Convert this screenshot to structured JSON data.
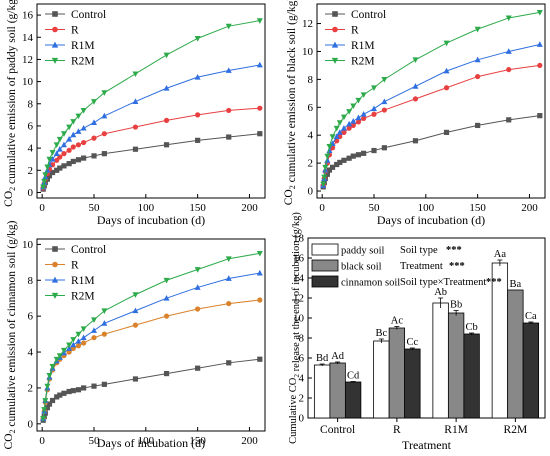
{
  "chart_data": [
    {
      "type": "line",
      "panel": "paddy",
      "xlabel": "Days of incubation (d)",
      "ylabel": "CO₂ cumulative emission of paddy soil (g/kg)",
      "xlim": [
        -5,
        215
      ],
      "ylim": [
        -0.5,
        17
      ],
      "xticks": [
        0,
        50,
        100,
        150,
        200
      ],
      "yticks": [
        0,
        2,
        4,
        6,
        8,
        10,
        12,
        14,
        16
      ],
      "legend_position": "top-left",
      "x": [
        1,
        2,
        3,
        5,
        7,
        10,
        14,
        17,
        21,
        26,
        30,
        35,
        40,
        50,
        60,
        90,
        120,
        150,
        180,
        210
      ],
      "series": [
        {
          "name": "Control",
          "color": "#555555",
          "marker": "square",
          "values": [
            0.3,
            0.6,
            0.9,
            1.2,
            1.5,
            1.8,
            2.0,
            2.2,
            2.4,
            2.6,
            2.8,
            2.95,
            3.1,
            3.3,
            3.5,
            3.9,
            4.3,
            4.7,
            5.0,
            5.3
          ]
        },
        {
          "name": "R",
          "color": "#e84040",
          "marker": "circle",
          "values": [
            0.4,
            0.8,
            1.2,
            1.7,
            2.1,
            2.5,
            2.9,
            3.2,
            3.5,
            3.8,
            4.1,
            4.3,
            4.5,
            4.9,
            5.3,
            5.9,
            6.5,
            7.0,
            7.4,
            7.6
          ]
        },
        {
          "name": "R1M",
          "color": "#2f6fe0",
          "marker": "triangle-up",
          "values": [
            0.5,
            0.9,
            1.4,
            2.0,
            2.5,
            3.0,
            3.5,
            3.9,
            4.3,
            4.8,
            5.2,
            5.5,
            5.8,
            6.3,
            6.9,
            8.2,
            9.4,
            10.4,
            11.0,
            11.5
          ]
        },
        {
          "name": "R2M",
          "color": "#2daa4a",
          "marker": "triangle-down",
          "values": [
            0.5,
            1.0,
            1.6,
            2.3,
            3.0,
            3.6,
            4.3,
            4.8,
            5.3,
            5.9,
            6.4,
            6.9,
            7.4,
            8.2,
            9.0,
            10.7,
            12.4,
            13.9,
            15.0,
            15.5
          ]
        }
      ]
    },
    {
      "type": "line",
      "panel": "black",
      "xlabel": "Days of incubation (d)",
      "ylabel": "CO₂ cumulative emission of black soil (g/kg)",
      "xlim": [
        -5,
        215
      ],
      "ylim": [
        -0.5,
        13.4
      ],
      "xticks": [
        0,
        50,
        100,
        150,
        200
      ],
      "yticks": [
        0,
        2,
        4,
        6,
        8,
        10,
        12
      ],
      "legend_position": "top-left",
      "x": [
        1,
        2,
        3,
        5,
        7,
        10,
        14,
        17,
        21,
        26,
        30,
        35,
        40,
        50,
        60,
        90,
        120,
        150,
        180,
        210
      ],
      "series": [
        {
          "name": "Control",
          "color": "#555555",
          "marker": "square",
          "values": [
            0.3,
            0.6,
            0.9,
            1.2,
            1.5,
            1.7,
            1.9,
            2.05,
            2.2,
            2.35,
            2.5,
            2.6,
            2.7,
            2.9,
            3.1,
            3.6,
            4.2,
            4.7,
            5.1,
            5.4
          ]
        },
        {
          "name": "R",
          "color": "#e84040",
          "marker": "circle",
          "values": [
            0.4,
            0.9,
            1.4,
            2.0,
            2.6,
            3.1,
            3.6,
            3.9,
            4.2,
            4.5,
            4.7,
            4.95,
            5.2,
            5.5,
            5.8,
            6.6,
            7.4,
            8.2,
            8.7,
            9.0
          ]
        },
        {
          "name": "R1M",
          "color": "#2f6fe0",
          "marker": "triangle-up",
          "values": [
            0.4,
            0.9,
            1.5,
            2.2,
            2.9,
            3.4,
            3.9,
            4.2,
            4.5,
            4.8,
            5.0,
            5.25,
            5.5,
            5.9,
            6.4,
            7.5,
            8.6,
            9.4,
            10.0,
            10.5
          ]
        },
        {
          "name": "R2M",
          "color": "#2daa4a",
          "marker": "triangle-down",
          "values": [
            0.5,
            1.0,
            1.7,
            2.5,
            3.2,
            3.9,
            4.5,
            4.9,
            5.3,
            5.7,
            6.1,
            6.5,
            6.9,
            7.4,
            8.0,
            9.4,
            10.6,
            11.6,
            12.4,
            12.8
          ]
        }
      ]
    },
    {
      "type": "line",
      "panel": "cinnamon",
      "xlabel": "Days of incubation (d)",
      "ylabel": "CO₂ cumulative emission of cinnamon soil (g/kg)",
      "xlim": [
        -5,
        215
      ],
      "ylim": [
        -0.4,
        10.3
      ],
      "xticks": [
        0,
        50,
        100,
        150,
        200
      ],
      "yticks": [
        0,
        2,
        4,
        6,
        8,
        10
      ],
      "legend_position": "top-left",
      "x": [
        1,
        2,
        3,
        5,
        7,
        10,
        14,
        17,
        21,
        26,
        30,
        35,
        40,
        50,
        60,
        90,
        120,
        150,
        180,
        210
      ],
      "series": [
        {
          "name": "Control",
          "color": "#555555",
          "marker": "square",
          "values": [
            0.2,
            0.4,
            0.6,
            0.9,
            1.1,
            1.3,
            1.5,
            1.6,
            1.7,
            1.8,
            1.85,
            1.9,
            2.0,
            2.1,
            2.2,
            2.5,
            2.8,
            3.1,
            3.4,
            3.6
          ]
        },
        {
          "name": "R",
          "color": "#d9822b",
          "marker": "circle",
          "values": [
            0.3,
            0.7,
            1.2,
            1.9,
            2.5,
            3.0,
            3.4,
            3.6,
            3.8,
            4.0,
            4.2,
            4.35,
            4.5,
            4.8,
            5.0,
            5.5,
            6.0,
            6.4,
            6.7,
            6.9
          ]
        },
        {
          "name": "R1M",
          "color": "#2f6fe0",
          "marker": "triangle-up",
          "values": [
            0.3,
            0.7,
            1.3,
            2.0,
            2.6,
            3.1,
            3.5,
            3.7,
            3.95,
            4.2,
            4.4,
            4.6,
            4.8,
            5.2,
            5.6,
            6.3,
            7.0,
            7.6,
            8.1,
            8.4
          ]
        },
        {
          "name": "R2M",
          "color": "#2daa4a",
          "marker": "triangle-down",
          "values": [
            0.3,
            0.8,
            1.3,
            2.1,
            2.7,
            3.2,
            3.6,
            3.8,
            4.1,
            4.4,
            4.7,
            5.0,
            5.3,
            5.8,
            6.3,
            7.2,
            8.0,
            8.6,
            9.2,
            9.5
          ]
        }
      ]
    },
    {
      "type": "bar",
      "panel": "cumulative",
      "xlabel": "Treatment",
      "ylabel": "Cumulative CO₂ release at the end of incubation (g/kg)",
      "categories": [
        "Control",
        "R",
        "R1M",
        "R2M"
      ],
      "ylim": [
        0,
        18
      ],
      "yticks": [
        0,
        2,
        4,
        6,
        8,
        10,
        12,
        14,
        16,
        18
      ],
      "legend_position": "top-left",
      "series": [
        {
          "name": "paddy soil",
          "color": "#ffffff",
          "values": [
            5.3,
            7.7,
            11.5,
            15.5
          ],
          "errors": [
            0.1,
            0.2,
            0.5,
            0.3
          ],
          "labels": [
            "Bd",
            "Bc",
            "Ab",
            "Aa"
          ]
        },
        {
          "name": "black soil",
          "color": "#888888",
          "values": [
            5.5,
            9.0,
            10.5,
            12.8
          ],
          "errors": [
            0.1,
            0.15,
            0.25,
            0.0
          ],
          "labels": [
            "Ad",
            "Ac",
            "Bb",
            "Ba"
          ]
        },
        {
          "name": "cinnamon soil",
          "color": "#333333",
          "values": [
            3.6,
            6.9,
            8.4,
            9.5
          ],
          "errors": [
            0.05,
            0.1,
            0.1,
            0.1
          ],
          "labels": [
            "Cd",
            "Cc",
            "Cb",
            "Ca"
          ]
        }
      ],
      "stats": [
        {
          "label": "Soil type",
          "sig": "***"
        },
        {
          "label": "Treatment",
          "sig": "***"
        },
        {
          "label": "Soil type×Treatment",
          "sig": "***"
        }
      ]
    }
  ]
}
